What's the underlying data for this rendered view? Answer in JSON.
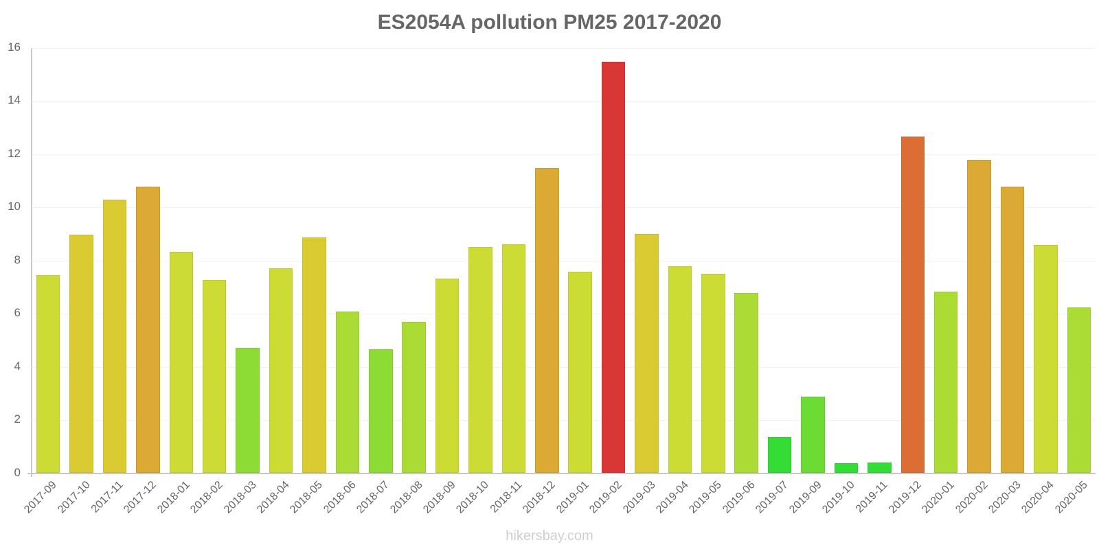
{
  "chart": {
    "title": "ES2054A pollution PM25 2017-2020",
    "watermark": "hikersbay.com",
    "y_ticks": [
      "16",
      "14",
      "12",
      "10",
      "8",
      "6",
      "4",
      "2",
      "0"
    ]
  },
  "chart_data": {
    "type": "bar",
    "title": "ES2054A pollution PM25 2017-2020",
    "xlabel": "",
    "ylabel": "",
    "ylim": [
      0,
      16
    ],
    "yticks": [
      0,
      2,
      4,
      6,
      8,
      10,
      12,
      14,
      16
    ],
    "grid": true,
    "legend": null,
    "categories": [
      "2017-09",
      "2017-10",
      "2017-11",
      "2017-12",
      "2018-01",
      "2018-02",
      "2018-03",
      "2018-04",
      "2018-05",
      "2018-06",
      "2018-07",
      "2018-08",
      "2018-09",
      "2018-10",
      "2018-11",
      "2018-12",
      "2019-01",
      "2019-02",
      "2019-03",
      "2019-04",
      "2019-05",
      "2019-06",
      "2019-07",
      "2019-09",
      "2019-10",
      "2019-11",
      "2019-12",
      "2020-01",
      "2020-02",
      "2020-03",
      "2020-04",
      "2020-05"
    ],
    "values": [
      7.45,
      8.97,
      10.28,
      10.77,
      8.34,
      7.27,
      4.71,
      7.71,
      8.86,
      6.08,
      4.66,
      5.69,
      7.33,
      8.51,
      8.61,
      11.48,
      7.59,
      15.48,
      9.0,
      7.78,
      7.5,
      6.78,
      1.36,
      2.89,
      0.37,
      0.39,
      12.68,
      6.83,
      11.78,
      10.79,
      8.58,
      6.24
    ],
    "colors": [
      "#cddc35",
      "#dbcb33",
      "#dbcb33",
      "#dba934",
      "#cddc35",
      "#cddc35",
      "#8cdc35",
      "#cddc35",
      "#dbcb33",
      "#aadc35",
      "#8cdc35",
      "#aadc35",
      "#cddc35",
      "#cddc35",
      "#cddc35",
      "#dba934",
      "#cddc35",
      "#d93636",
      "#dbcb33",
      "#cddc35",
      "#cddc35",
      "#aadc35",
      "#34dc35",
      "#6cdc35",
      "#34dc35",
      "#34dc35",
      "#dc6e35",
      "#aadc35",
      "#dba934",
      "#dba934",
      "#cddc35",
      "#aadc35"
    ]
  }
}
